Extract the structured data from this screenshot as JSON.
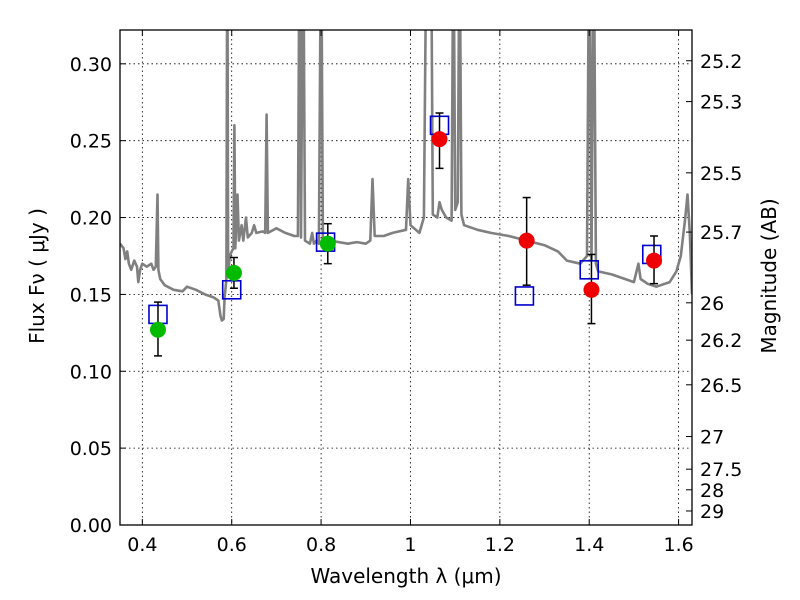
{
  "chart_data": {
    "type": "scatter",
    "title": "",
    "xlabel": "Wavelength  λ (μm)",
    "ylabel": "Flux  Fν  ( μJy )",
    "y2label": "Magnitude (AB)",
    "xlim": [
      0.35,
      1.63
    ],
    "ylim": [
      0.0,
      0.322
    ],
    "grid": true,
    "x_ticks": [
      {
        "value": 0.4,
        "label": "0.4"
      },
      {
        "value": 0.6,
        "label": "0.6"
      },
      {
        "value": 0.8,
        "label": "0.8"
      },
      {
        "value": 1.0,
        "label": "1"
      },
      {
        "value": 1.2,
        "label": "1.2"
      },
      {
        "value": 1.4,
        "label": "1.4"
      },
      {
        "value": 1.6,
        "label": "1.6"
      }
    ],
    "y_ticks": [
      {
        "value": 0.0,
        "label": "0.00"
      },
      {
        "value": 0.05,
        "label": "0.05"
      },
      {
        "value": 0.1,
        "label": "0.10"
      },
      {
        "value": 0.15,
        "label": "0.15"
      },
      {
        "value": 0.2,
        "label": "0.20"
      },
      {
        "value": 0.25,
        "label": "0.25"
      },
      {
        "value": 0.3,
        "label": "0.30"
      }
    ],
    "y2_ticks": [
      {
        "value": 25.2,
        "label": "25.2"
      },
      {
        "value": 25.3,
        "label": "25.3"
      },
      {
        "value": 25.5,
        "label": "25.5"
      },
      {
        "value": 25.7,
        "label": "25.7"
      },
      {
        "value": 26.0,
        "label": "26"
      },
      {
        "value": 26.2,
        "label": "26.2"
      },
      {
        "value": 26.5,
        "label": "26.5"
      },
      {
        "value": 27.0,
        "label": "27"
      },
      {
        "value": 27.5,
        "label": "27.5"
      },
      {
        "value": 28.0,
        "label": "28"
      },
      {
        "value": 29.0,
        "label": "29"
      }
    ],
    "series": [
      {
        "kind": "spectrum",
        "color": "#808080",
        "points": [
          [
            0.35,
            0.183
          ],
          [
            0.358,
            0.18
          ],
          [
            0.362,
            0.173
          ],
          [
            0.366,
            0.178
          ],
          [
            0.37,
            0.17
          ],
          [
            0.375,
            0.166
          ],
          [
            0.382,
            0.172
          ],
          [
            0.388,
            0.168
          ],
          [
            0.391,
            0.158
          ],
          [
            0.395,
            0.166
          ],
          [
            0.4,
            0.17
          ],
          [
            0.41,
            0.168
          ],
          [
            0.42,
            0.17
          ],
          [
            0.425,
            0.166
          ],
          [
            0.43,
            0.168
          ],
          [
            0.434,
            0.215
          ],
          [
            0.436,
            0.166
          ],
          [
            0.44,
            0.16
          ],
          [
            0.45,
            0.156
          ],
          [
            0.47,
            0.153
          ],
          [
            0.49,
            0.152
          ],
          [
            0.5,
            0.155
          ],
          [
            0.52,
            0.153
          ],
          [
            0.54,
            0.15
          ],
          [
            0.56,
            0.148
          ],
          [
            0.57,
            0.146
          ],
          [
            0.575,
            0.136
          ],
          [
            0.578,
            0.133
          ],
          [
            0.582,
            0.134
          ],
          [
            0.584,
            0.148
          ],
          [
            0.588,
            0.16
          ],
          [
            0.59,
            0.4
          ],
          [
            0.592,
            0.165
          ],
          [
            0.596,
            0.175
          ],
          [
            0.6,
            0.178
          ],
          [
            0.604,
            0.18
          ],
          [
            0.606,
            0.26
          ],
          [
            0.608,
            0.18
          ],
          [
            0.613,
            0.215
          ],
          [
            0.616,
            0.185
          ],
          [
            0.622,
            0.195
          ],
          [
            0.626,
            0.185
          ],
          [
            0.632,
            0.2
          ],
          [
            0.636,
            0.187
          ],
          [
            0.645,
            0.19
          ],
          [
            0.65,
            0.195
          ],
          [
            0.655,
            0.19
          ],
          [
            0.67,
            0.191
          ],
          [
            0.675,
            0.19
          ],
          [
            0.678,
            0.267
          ],
          [
            0.681,
            0.19
          ],
          [
            0.7,
            0.193
          ],
          [
            0.72,
            0.19
          ],
          [
            0.74,
            0.188
          ],
          [
            0.748,
            0.188
          ],
          [
            0.752,
            0.4
          ],
          [
            0.755,
            0.187
          ],
          [
            0.76,
            0.4
          ],
          [
            0.764,
            0.185
          ],
          [
            0.775,
            0.183
          ],
          [
            0.78,
            0.19
          ],
          [
            0.784,
            0.183
          ],
          [
            0.79,
            0.185
          ],
          [
            0.795,
            0.183
          ],
          [
            0.8,
            0.4
          ],
          [
            0.804,
            0.185
          ],
          [
            0.82,
            0.185
          ],
          [
            0.86,
            0.183
          ],
          [
            0.88,
            0.184
          ],
          [
            0.9,
            0.183
          ],
          [
            0.91,
            0.185
          ],
          [
            0.915,
            0.225
          ],
          [
            0.92,
            0.188
          ],
          [
            0.94,
            0.188
          ],
          [
            0.96,
            0.19
          ],
          [
            0.99,
            0.192
          ],
          [
            0.995,
            0.225
          ],
          [
            1.0,
            0.195
          ],
          [
            1.02,
            0.19
          ],
          [
            1.03,
            0.2
          ],
          [
            1.036,
            0.4
          ],
          [
            1.04,
            0.33
          ],
          [
            1.046,
            0.4
          ],
          [
            1.05,
            0.202
          ],
          [
            1.06,
            0.2
          ],
          [
            1.065,
            0.21
          ],
          [
            1.07,
            0.205
          ],
          [
            1.08,
            0.2
          ],
          [
            1.092,
            0.198
          ],
          [
            1.096,
            0.4
          ],
          [
            1.1,
            0.205
          ],
          [
            1.106,
            0.21
          ],
          [
            1.11,
            0.4
          ],
          [
            1.114,
            0.202
          ],
          [
            1.12,
            0.195
          ],
          [
            1.15,
            0.192
          ],
          [
            1.18,
            0.19
          ],
          [
            1.22,
            0.188
          ],
          [
            1.26,
            0.185
          ],
          [
            1.3,
            0.182
          ],
          [
            1.33,
            0.178
          ],
          [
            1.35,
            0.172
          ],
          [
            1.38,
            0.17
          ],
          [
            1.395,
            0.175
          ],
          [
            1.4,
            0.4
          ],
          [
            1.405,
            0.172
          ],
          [
            1.41,
            0.4
          ],
          [
            1.415,
            0.17
          ],
          [
            1.42,
            0.165
          ],
          [
            1.45,
            0.163
          ],
          [
            1.48,
            0.16
          ],
          [
            1.5,
            0.158
          ],
          [
            1.51,
            0.17
          ],
          [
            1.515,
            0.16
          ],
          [
            1.53,
            0.157
          ],
          [
            1.55,
            0.155
          ],
          [
            1.58,
            0.158
          ],
          [
            1.595,
            0.165
          ],
          [
            1.605,
            0.175
          ],
          [
            1.615,
            0.2
          ],
          [
            1.62,
            0.215
          ],
          [
            1.625,
            0.19
          ],
          [
            1.63,
            0.15
          ]
        ]
      },
      {
        "kind": "model-photometry",
        "color": "#0000cc",
        "marker": "open-square",
        "points": [
          [
            0.435,
            0.137
          ],
          [
            0.6,
            0.153
          ],
          [
            0.81,
            0.184
          ],
          [
            1.065,
            0.26
          ],
          [
            1.255,
            0.149
          ],
          [
            1.4,
            0.166
          ],
          [
            1.54,
            0.176
          ]
        ]
      },
      {
        "kind": "observed-green",
        "color": "#00bb00",
        "marker": "filled-circle",
        "points": [
          {
            "x": 0.435,
            "y": 0.127,
            "lo": 0.11,
            "hi": 0.145
          },
          {
            "x": 0.605,
            "y": 0.164,
            "lo": 0.154,
            "hi": 0.174
          },
          {
            "x": 0.815,
            "y": 0.183,
            "lo": 0.17,
            "hi": 0.196
          }
        ]
      },
      {
        "kind": "observed-red",
        "color": "#ee0000",
        "marker": "filled-circle",
        "points": [
          {
            "x": 1.065,
            "y": 0.251,
            "lo": 0.232,
            "hi": 0.268
          },
          {
            "x": 1.26,
            "y": 0.185,
            "lo": 0.156,
            "hi": 0.213
          },
          {
            "x": 1.405,
            "y": 0.153,
            "lo": 0.131,
            "hi": 0.176
          },
          {
            "x": 1.545,
            "y": 0.172,
            "lo": 0.157,
            "hi": 0.188
          }
        ]
      }
    ]
  }
}
